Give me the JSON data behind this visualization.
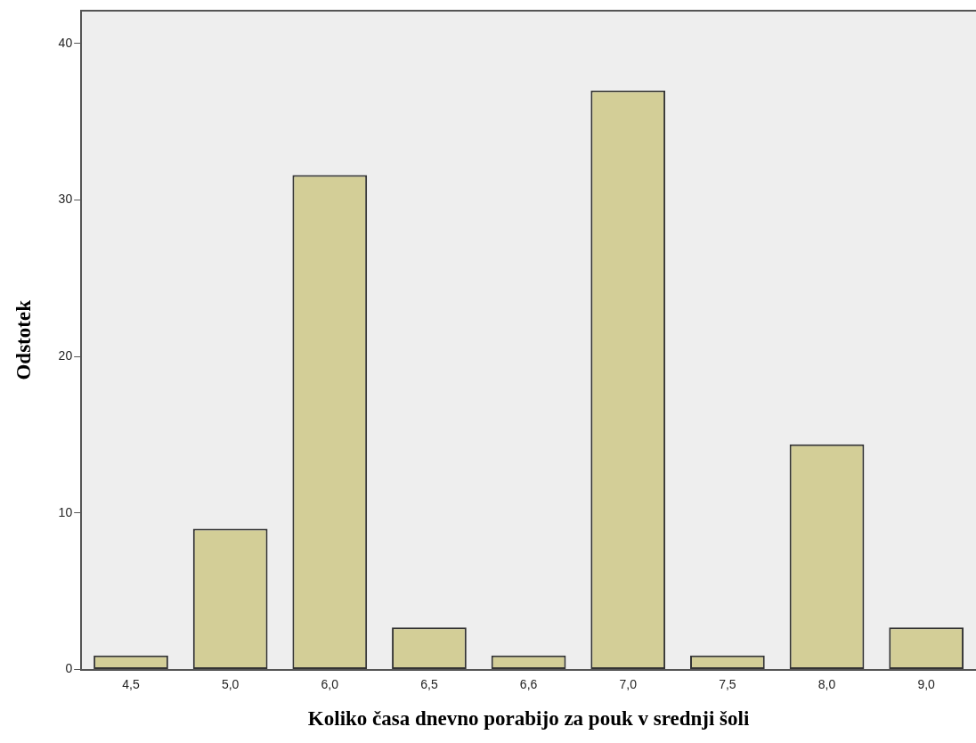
{
  "chart_data": {
    "type": "bar",
    "xlabel": "Koliko časa dnevno porabijo za pouk v srednji šoli",
    "ylabel": "Odstotek",
    "categories": [
      "4,5",
      "5,0",
      "6,0",
      "6,5",
      "6,6",
      "7,0",
      "7,5",
      "8,0",
      "9,0"
    ],
    "values": [
      0.9,
      9.0,
      31.6,
      2.7,
      0.9,
      37.0,
      0.9,
      14.4,
      2.7
    ],
    "color": "#d3ce97",
    "ylim": [
      0,
      42.1
    ],
    "yticks": [
      0,
      10,
      20,
      30,
      40
    ],
    "grid": false,
    "legend": false
  }
}
